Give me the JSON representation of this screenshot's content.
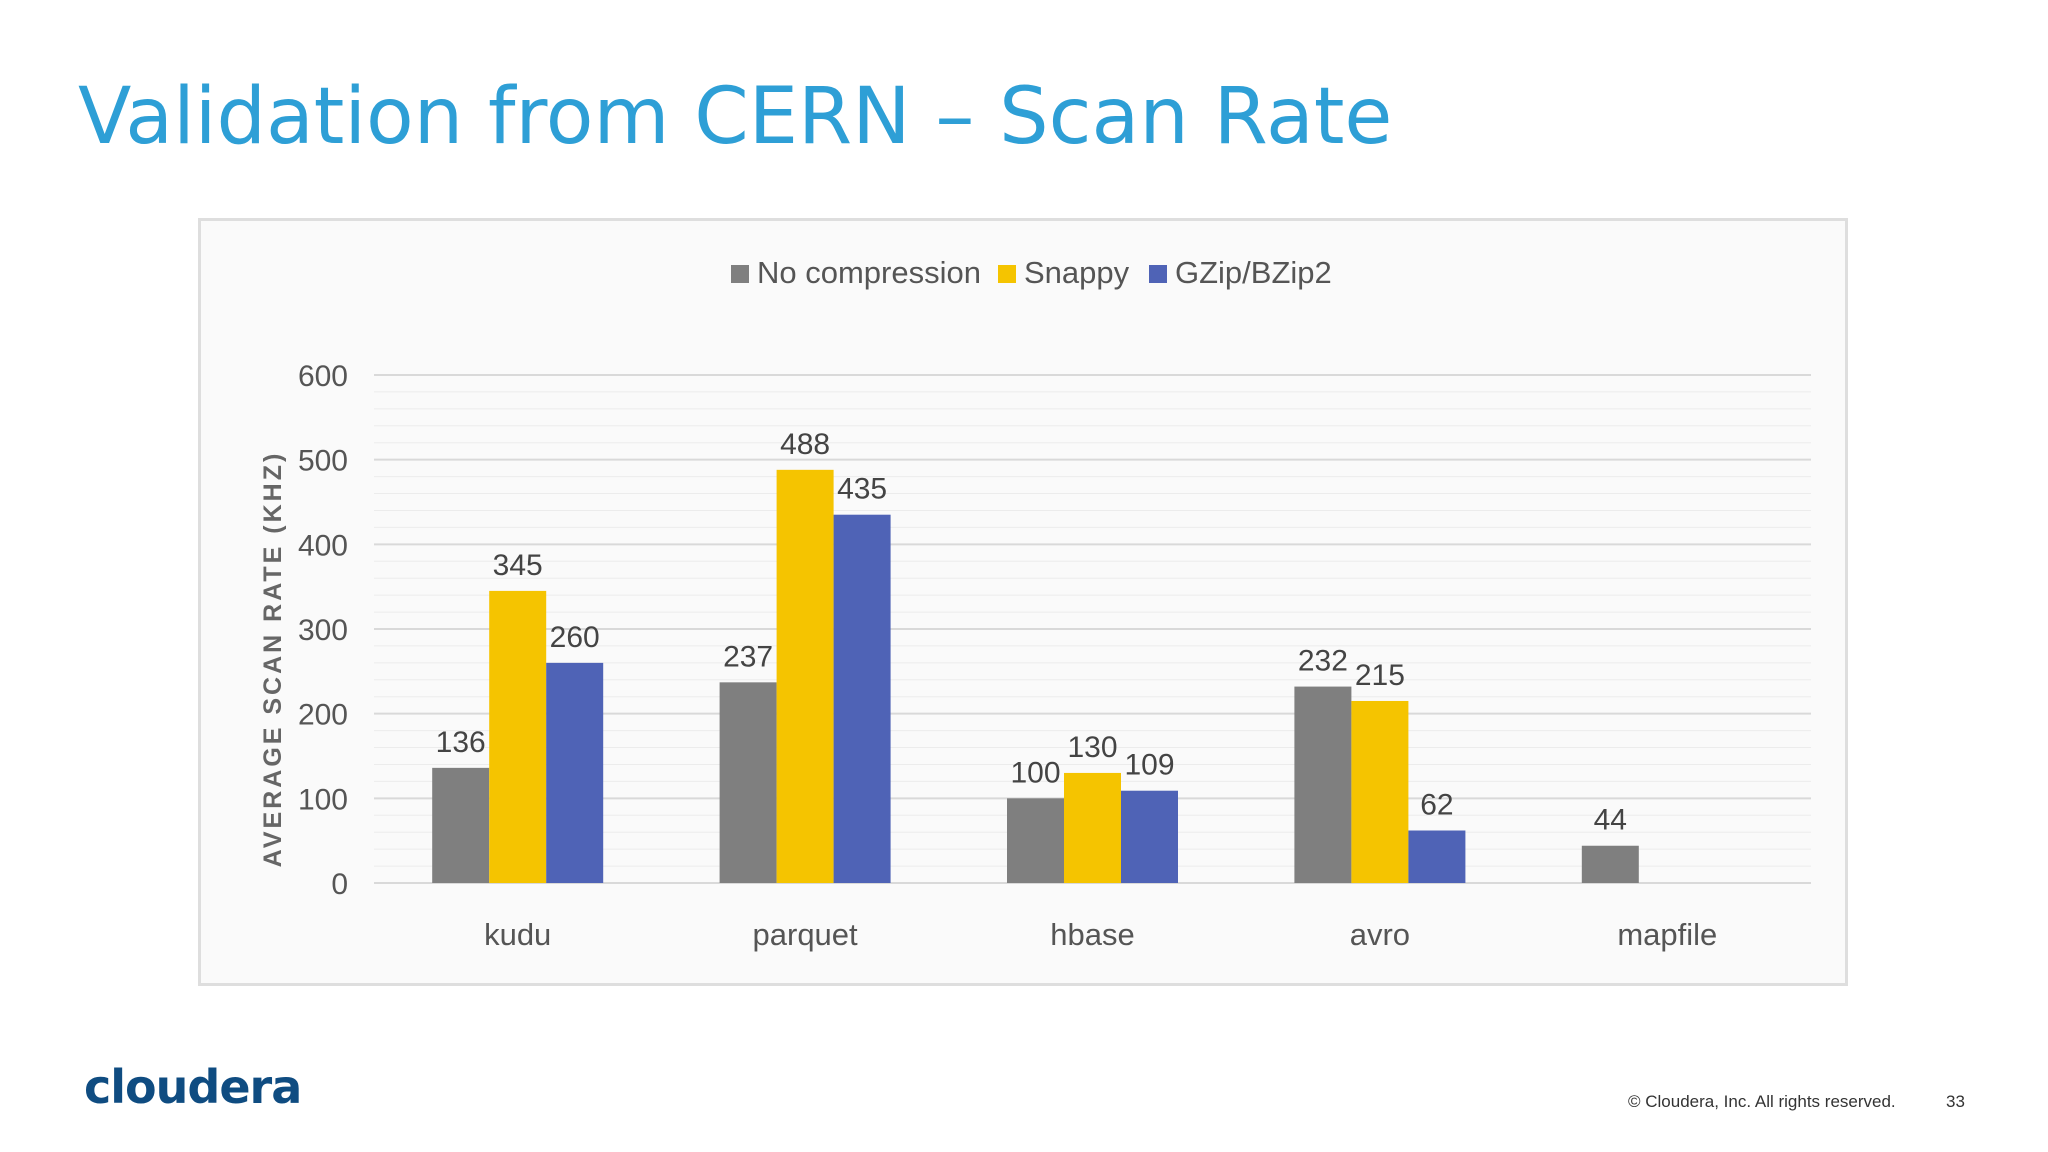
{
  "slide": {
    "title": "Validation from CERN – Scan Rate",
    "logo_text": "cloudera",
    "footer": "© Cloudera, Inc. All rights reserved.",
    "page_number": "33"
  },
  "colors": {
    "title": "#2e9fd6",
    "logo": "#0f4c81"
  },
  "chart_data": {
    "type": "bar",
    "title": "",
    "xlabel": "",
    "ylabel": "AVERAGE SCAN RATE (KHZ)",
    "ylim": [
      0,
      600
    ],
    "yticks": [
      0,
      100,
      200,
      300,
      400,
      500,
      600
    ],
    "grid": true,
    "legend_position": "top-center",
    "categories": [
      "kudu",
      "parquet",
      "hbase",
      "avro",
      "mapfile"
    ],
    "series": [
      {
        "name": "No compression",
        "color": "#7f7f7f",
        "values": [
          136,
          237,
          100,
          232,
          44
        ]
      },
      {
        "name": "Snappy",
        "color": "#f5c400",
        "values": [
          345,
          488,
          130,
          215,
          null
        ]
      },
      {
        "name": "GZip/BZip2",
        "color": "#4f63b6",
        "values": [
          260,
          435,
          109,
          62,
          null
        ]
      }
    ]
  }
}
